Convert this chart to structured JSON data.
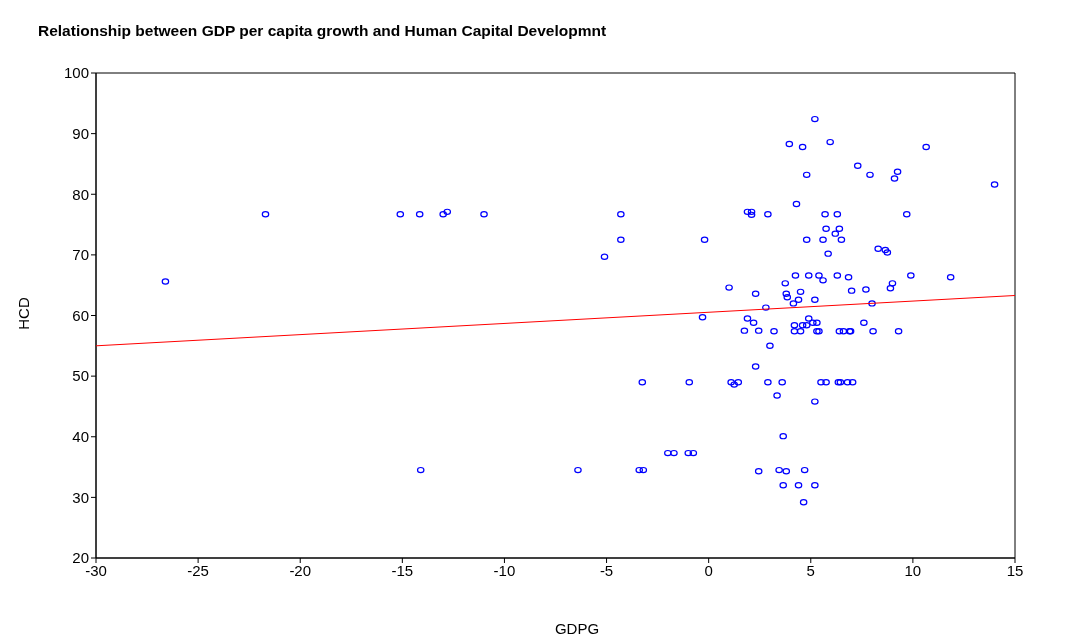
{
  "chart_data": {
    "type": "scatter",
    "title": "Relationship between GDP per capita growth and Human Capital Developmnt",
    "xlabel": "GDPG",
    "ylabel": "HCD",
    "xlim": [
      -30,
      15
    ],
    "xticks": [
      -30,
      -25,
      -20,
      -15,
      -10,
      -5,
      0,
      5,
      10,
      15
    ],
    "ylim": [
      20,
      100
    ],
    "yticks": [
      20,
      30,
      40,
      50,
      60,
      70,
      80,
      90,
      100
    ],
    "series": [
      {
        "marker": "circle",
        "color": "#0000ff",
        "x": [
          -26.6,
          -21.7,
          -15.1,
          -14.15,
          -13.0,
          -12.8,
          -11.0,
          -14.1,
          -5.1,
          -4.3,
          -4.3,
          -0.2,
          -0.3,
          1.0,
          5.2,
          3.95,
          4.6,
          5.95,
          7.3,
          4.8,
          4.3,
          1.9,
          2.1,
          2.1,
          2.9,
          5.7,
          6.3,
          5.75,
          6.4,
          6.2,
          4.8,
          5.6,
          6.5,
          5.85,
          4.25,
          4.9,
          5.4,
          5.6,
          6.3,
          6.85,
          3.75,
          7.0,
          2.3,
          3.8,
          4.5,
          3.85,
          4.4,
          5.2,
          4.15,
          2.8,
          10.65,
          7.9,
          9.25,
          9.1,
          14.0,
          9.7,
          8.3,
          8.65,
          8.75,
          9.9,
          11.85,
          9.0,
          8.9,
          7.7,
          8.0,
          7.6,
          8.05,
          9.3,
          6.95,
          1.9,
          2.2,
          4.9,
          4.2,
          4.6,
          4.8,
          5.1,
          5.3,
          1.75,
          2.45,
          3.2,
          4.2,
          4.5,
          5.3,
          5.4,
          6.4,
          6.6,
          6.9,
          3.0,
          2.3,
          -3.25,
          -0.95,
          1.1,
          1.25,
          1.45,
          2.9,
          3.6,
          5.5,
          5.75,
          6.35,
          6.45,
          6.8,
          7.05,
          3.35,
          5.2,
          3.65,
          -2.0,
          -1.7,
          -1.0,
          -0.75,
          -6.4,
          -3.4,
          -3.2,
          2.45,
          3.45,
          3.8,
          4.7,
          3.65,
          4.4,
          5.2,
          4.65
        ],
        "values": [
          65.6,
          76.7,
          76.7,
          76.7,
          76.7,
          77.1,
          76.7,
          34.5,
          69.7,
          76.7,
          72.5,
          72.5,
          59.7,
          64.6,
          92.4,
          88.3,
          87.8,
          88.6,
          84.7,
          83.2,
          78.4,
          77.1,
          77.1,
          76.6,
          76.7,
          76.7,
          76.7,
          74.3,
          74.3,
          73.5,
          72.5,
          72.5,
          72.5,
          70.2,
          66.6,
          66.6,
          66.6,
          65.8,
          66.6,
          66.3,
          65.3,
          64.1,
          63.6,
          63.6,
          63.9,
          63.0,
          62.6,
          62.6,
          62.0,
          61.3,
          87.8,
          83.2,
          83.7,
          82.6,
          81.6,
          76.7,
          71.0,
          70.8,
          70.4,
          66.6,
          66.3,
          65.3,
          64.5,
          64.3,
          62.0,
          58.8,
          57.4,
          57.4,
          57.4,
          59.5,
          58.8,
          59.5,
          58.4,
          58.4,
          58.4,
          58.8,
          58.8,
          57.5,
          57.5,
          57.4,
          57.4,
          57.4,
          57.4,
          57.4,
          57.4,
          57.4,
          57.4,
          55.0,
          51.6,
          49.0,
          49.0,
          49.0,
          48.6,
          49.0,
          49.0,
          49.0,
          49.0,
          49.0,
          49.0,
          49.0,
          49.0,
          49.0,
          46.8,
          45.8,
          40.1,
          37.3,
          37.3,
          37.3,
          37.3,
          34.5,
          34.5,
          34.5,
          34.3,
          34.5,
          34.3,
          34.5,
          32.0,
          32.0,
          32.0,
          29.2
        ]
      },
      {
        "type": "line",
        "color": "#ff0000",
        "x": [
          -30,
          15
        ],
        "values": [
          55.0,
          63.3
        ]
      }
    ]
  }
}
